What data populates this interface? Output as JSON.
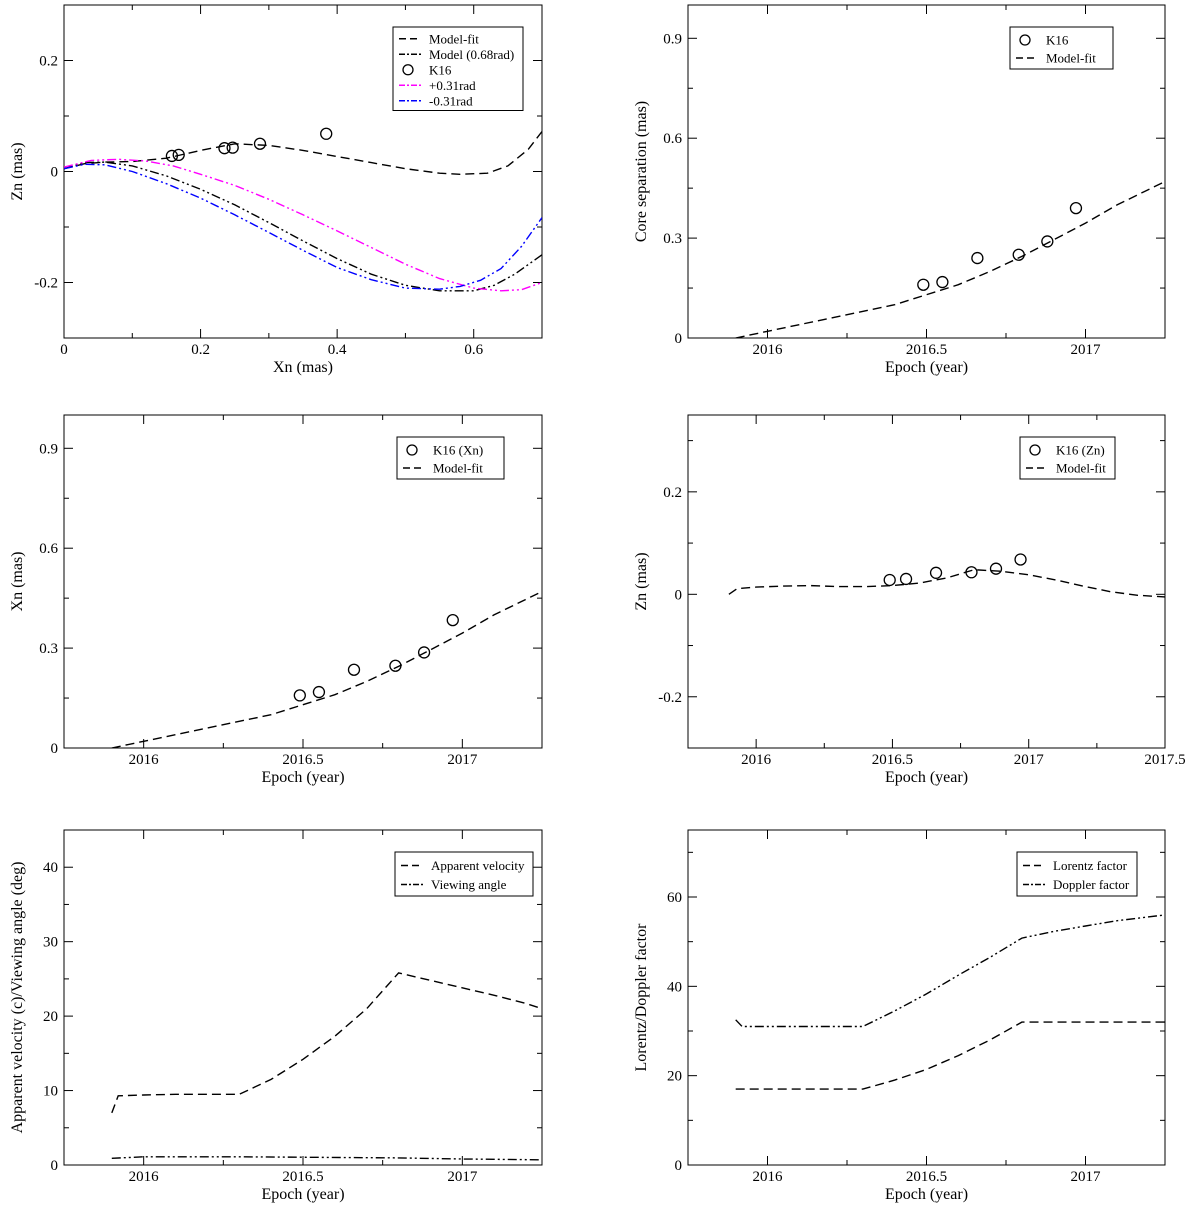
{
  "figure": "Six-panel jet kinematics fit",
  "chart_data": [
    {
      "id": "p1",
      "type": "line",
      "xlabel": "Xn (mas)",
      "ylabel": "Zn (mas)",
      "xlim": [
        0,
        0.7
      ],
      "ylim": [
        -0.3,
        0.3
      ],
      "xticks": [
        0,
        0.2,
        0.4,
        0.6
      ],
      "xtick_labels": [
        "0",
        "0.2",
        "0.4",
        "0.6"
      ],
      "yticks": [
        -0.2,
        0,
        0.2
      ],
      "ytick_labels": [
        "-0.2",
        "0",
        "0.2"
      ],
      "series": [
        {
          "name": "Model-fit",
          "style": "dash",
          "color": "#000000",
          "x": [
            0,
            0.03,
            0.06,
            0.1,
            0.15,
            0.2,
            0.25,
            0.3,
            0.35,
            0.4,
            0.45,
            0.5,
            0.55,
            0.58,
            0.62,
            0.65,
            0.68,
            0.7
          ],
          "y": [
            0.005,
            0.014,
            0.017,
            0.018,
            0.024,
            0.038,
            0.05,
            0.047,
            0.038,
            0.027,
            0.016,
            0.005,
            -0.003,
            -0.005,
            -0.003,
            0.01,
            0.04,
            0.072
          ]
        },
        {
          "name": "Model (0.68rad)",
          "style": "dashdotdot",
          "color": "#000000",
          "x": [
            0,
            0.03,
            0.06,
            0.1,
            0.15,
            0.2,
            0.25,
            0.3,
            0.35,
            0.4,
            0.45,
            0.5,
            0.55,
            0.6,
            0.63,
            0.66,
            0.7
          ],
          "y": [
            0.005,
            0.016,
            0.017,
            0.01,
            -0.008,
            -0.032,
            -0.06,
            -0.092,
            -0.125,
            -0.157,
            -0.185,
            -0.205,
            -0.215,
            -0.215,
            -0.205,
            -0.185,
            -0.15
          ]
        },
        {
          "name": "+0.31rad",
          "style": "dashdotdot",
          "color": "#ff00ff",
          "x": [
            0,
            0.04,
            0.08,
            0.12,
            0.16,
            0.2,
            0.25,
            0.3,
            0.35,
            0.4,
            0.45,
            0.5,
            0.55,
            0.6,
            0.64,
            0.67,
            0.7
          ],
          "y": [
            0.008,
            0.02,
            0.022,
            0.019,
            0.01,
            -0.005,
            -0.025,
            -0.05,
            -0.078,
            -0.107,
            -0.137,
            -0.167,
            -0.193,
            -0.21,
            -0.215,
            -0.213,
            -0.2
          ]
        },
        {
          "name": "-0.31rad",
          "style": "dashdotdot",
          "color": "#0000ff",
          "x": [
            0,
            0.03,
            0.06,
            0.1,
            0.15,
            0.2,
            0.25,
            0.3,
            0.35,
            0.4,
            0.45,
            0.5,
            0.55,
            0.58,
            0.61,
            0.64,
            0.67,
            0.7
          ],
          "y": [
            0.005,
            0.013,
            0.012,
            0.0,
            -0.022,
            -0.048,
            -0.078,
            -0.11,
            -0.142,
            -0.173,
            -0.195,
            -0.21,
            -0.212,
            -0.207,
            -0.196,
            -0.175,
            -0.135,
            -0.083
          ]
        },
        {
          "name": "K16",
          "style": "circle",
          "color": "#000000",
          "x": [
            0.158,
            0.168,
            0.235,
            0.247,
            0.287,
            0.384
          ],
          "y": [
            0.028,
            0.03,
            0.042,
            0.043,
            0.05,
            0.068
          ]
        }
      ],
      "legend": [
        "Model-fit",
        "Model (0.68rad)",
        "K16",
        "+0.31rad",
        "-0.31rad"
      ],
      "legend_position": "top-right"
    },
    {
      "id": "p2",
      "type": "line",
      "xlabel": "Epoch (year)",
      "ylabel": "Core separation (mas)",
      "xlim": [
        2015.75,
        2017.25
      ],
      "ylim": [
        0,
        1.0
      ],
      "xticks": [
        2016,
        2016.5,
        2017
      ],
      "xtick_labels": [
        "2016",
        "2016.5",
        "2017"
      ],
      "yticks": [
        0,
        0.3,
        0.6,
        0.9
      ],
      "ytick_labels": [
        "0",
        "0.3",
        "0.6",
        "0.9"
      ],
      "series": [
        {
          "name": "K16",
          "style": "circle",
          "color": "#000000",
          "x": [
            2016.49,
            2016.55,
            2016.66,
            2016.79,
            2016.88,
            2016.97
          ],
          "y": [
            0.16,
            0.168,
            0.24,
            0.25,
            0.29,
            0.39
          ]
        },
        {
          "name": "Model-fit",
          "style": "dash",
          "color": "#000000",
          "x": [
            2015.9,
            2016.0,
            2016.2,
            2016.4,
            2016.5,
            2016.6,
            2016.7,
            2016.8,
            2016.9,
            2017.0,
            2017.1,
            2017.25
          ],
          "y": [
            0.0,
            0.02,
            0.06,
            0.1,
            0.13,
            0.16,
            0.2,
            0.245,
            0.295,
            0.345,
            0.4,
            0.47
          ]
        }
      ],
      "legend": [
        "K16",
        "Model-fit"
      ],
      "legend_position": "top-right"
    },
    {
      "id": "p3",
      "type": "line",
      "xlabel": "Epoch (year)",
      "ylabel": "Xn (mas)",
      "xlim": [
        2015.75,
        2017.25
      ],
      "ylim": [
        0,
        1.0
      ],
      "xticks": [
        2016,
        2016.5,
        2017
      ],
      "xtick_labels": [
        "2016",
        "2016.5",
        "2017"
      ],
      "yticks": [
        0,
        0.3,
        0.6,
        0.9
      ],
      "ytick_labels": [
        "0",
        "0.3",
        "0.6",
        "0.9"
      ],
      "series": [
        {
          "name": "K16 (Xn)",
          "style": "circle",
          "color": "#000000",
          "x": [
            2016.49,
            2016.55,
            2016.66,
            2016.79,
            2016.88,
            2016.97
          ],
          "y": [
            0.158,
            0.168,
            0.235,
            0.247,
            0.287,
            0.384
          ]
        },
        {
          "name": "Model-fit",
          "style": "dash",
          "color": "#000000",
          "x": [
            2015.9,
            2016.0,
            2016.2,
            2016.4,
            2016.5,
            2016.6,
            2016.7,
            2016.8,
            2016.9,
            2017.0,
            2017.1,
            2017.25
          ],
          "y": [
            0.0,
            0.02,
            0.06,
            0.1,
            0.13,
            0.16,
            0.2,
            0.245,
            0.295,
            0.345,
            0.4,
            0.47
          ]
        }
      ],
      "legend": [
        "K16 (Xn)",
        "Model-fit"
      ],
      "legend_position": "top-right"
    },
    {
      "id": "p4",
      "type": "line",
      "xlabel": "Epoch (year)",
      "ylabel": "Zn (mas)",
      "xlim": [
        2015.75,
        2017.5
      ],
      "ylim": [
        -0.3,
        0.35
      ],
      "xticks": [
        2016,
        2016.5,
        2017,
        2017.5
      ],
      "xtick_labels": [
        "2016",
        "2016.5",
        "2017",
        "2017.5"
      ],
      "yticks": [
        -0.2,
        0,
        0.2
      ],
      "ytick_labels": [
        "-0.2",
        "0",
        "0.2"
      ],
      "series": [
        {
          "name": "K16 (Zn)",
          "style": "circle",
          "color": "#000000",
          "x": [
            2016.49,
            2016.55,
            2016.66,
            2016.79,
            2016.88,
            2016.97
          ],
          "y": [
            0.028,
            0.03,
            0.042,
            0.043,
            0.05,
            0.068
          ]
        },
        {
          "name": "Model-fit",
          "style": "dash",
          "color": "#000000",
          "x": [
            2015.9,
            2015.93,
            2016.0,
            2016.1,
            2016.2,
            2016.3,
            2016.4,
            2016.5,
            2016.6,
            2016.7,
            2016.8,
            2016.9,
            2017.0,
            2017.1,
            2017.2,
            2017.3,
            2017.4,
            2017.5
          ],
          "y": [
            0.0,
            0.011,
            0.014,
            0.016,
            0.017,
            0.015,
            0.015,
            0.017,
            0.022,
            0.032,
            0.048,
            0.045,
            0.038,
            0.028,
            0.016,
            0.005,
            -0.002,
            -0.005
          ]
        }
      ],
      "legend": [
        "K16 (Zn)",
        "Model-fit"
      ],
      "legend_position": "top-right"
    },
    {
      "id": "p5",
      "type": "line",
      "xlabel": "Epoch (year)",
      "ylabel": "Apparent velocity (c)/Viewing angle (deg)",
      "xlim": [
        2015.75,
        2017.25
      ],
      "ylim": [
        0,
        45
      ],
      "xticks": [
        2016,
        2016.5,
        2017
      ],
      "xtick_labels": [
        "2016",
        "2016.5",
        "2017"
      ],
      "yticks": [
        0,
        10,
        20,
        30,
        40
      ],
      "ytick_labels": [
        "0",
        "10",
        "20",
        "30",
        "40"
      ],
      "series": [
        {
          "name": "Apparent velocity",
          "style": "dash",
          "color": "#000000",
          "x": [
            2015.9,
            2015.92,
            2016.0,
            2016.1,
            2016.2,
            2016.3,
            2016.4,
            2016.5,
            2016.6,
            2016.7,
            2016.8,
            2016.9,
            2017.0,
            2017.1,
            2017.2,
            2017.25
          ],
          "y": [
            7.0,
            9.3,
            9.4,
            9.5,
            9.5,
            9.5,
            11.5,
            14.2,
            17.3,
            21.0,
            25.8,
            24.8,
            23.8,
            22.8,
            21.7,
            21.0
          ]
        },
        {
          "name": "Viewing angle",
          "style": "dashdotdot",
          "color": "#000000",
          "x": [
            2015.9,
            2016.0,
            2016.3,
            2016.8,
            2017.0,
            2017.25
          ],
          "y": [
            0.9,
            1.1,
            1.1,
            0.95,
            0.8,
            0.7
          ]
        }
      ],
      "legend": [
        "Apparent velocity",
        "Viewing angle"
      ],
      "legend_position": "top-right"
    },
    {
      "id": "p6",
      "type": "line",
      "xlabel": "Epoch (year)",
      "ylabel": "Lorentz/Doppler factor",
      "xlim": [
        2015.75,
        2017.25
      ],
      "ylim": [
        0,
        75
      ],
      "xticks": [
        2016,
        2016.5,
        2017
      ],
      "xtick_labels": [
        "2016",
        "2016.5",
        "2017"
      ],
      "yticks": [
        0,
        20,
        40,
        60
      ],
      "ytick_labels": [
        "0",
        "20",
        "40",
        "60"
      ],
      "series": [
        {
          "name": "Lorentz factor",
          "style": "dash",
          "color": "#000000",
          "x": [
            2015.9,
            2016.0,
            2016.1,
            2016.2,
            2016.3,
            2016.4,
            2016.5,
            2016.6,
            2016.7,
            2016.8,
            2016.9,
            2017.0,
            2017.1,
            2017.25
          ],
          "y": [
            17,
            17,
            17,
            17,
            17,
            19.0,
            21.4,
            24.5,
            28.0,
            32,
            32,
            32,
            32,
            32
          ]
        },
        {
          "name": "Doppler factor",
          "style": "dashdotdot",
          "color": "#000000",
          "x": [
            2015.9,
            2015.92,
            2016.0,
            2016.1,
            2016.2,
            2016.3,
            2016.4,
            2016.5,
            2016.6,
            2016.7,
            2016.8,
            2016.9,
            2017.0,
            2017.1,
            2017.25
          ],
          "y": [
            32.5,
            31.0,
            31.0,
            31.0,
            31.0,
            31.0,
            34.5,
            38.3,
            42.5,
            46.5,
            50.8,
            52.3,
            53.5,
            54.7,
            56.0
          ]
        }
      ],
      "legend": [
        "Lorentz factor",
        "Doppler factor"
      ],
      "legend_position": "top-right"
    }
  ]
}
